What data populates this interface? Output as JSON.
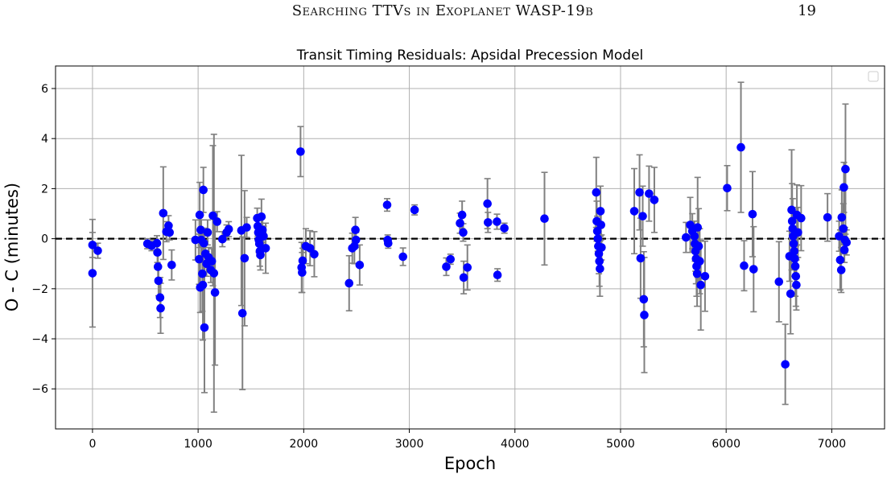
{
  "page": {
    "running_title": "Searching TTVs in Exoplanet WASP-19b",
    "page_number": "19"
  },
  "colors": {
    "points": "#0000ff",
    "errorbars": "#808080",
    "zero_line": "#000000",
    "grid": "#b0b0b0"
  },
  "chart_data": {
    "type": "scatter",
    "title": "Transit Timing Residuals: Apsidal Precession Model",
    "xlabel": "Epoch",
    "ylabel": "O - C (minutes)",
    "xlim": [
      -350,
      7500
    ],
    "ylim": [
      -7.6,
      6.9
    ],
    "xticks": [
      0,
      1000,
      2000,
      3000,
      4000,
      5000,
      6000,
      7000
    ],
    "yticks": [
      -6,
      -4,
      -2,
      0,
      2,
      4,
      6
    ],
    "ytick_labels": [
      "−6",
      "−4",
      "−2",
      "0",
      "2",
      "4",
      "6"
    ],
    "grid": true,
    "legend": "top-right (empty)",
    "reference_line": {
      "y": 0,
      "style": "dashed"
    },
    "series": [
      {
        "marker": "circle",
        "points": [
          {
            "x": 0,
            "y": -0.25,
            "err": 0.5
          },
          {
            "x": 0,
            "y": -1.38,
            "err": 2.15
          },
          {
            "x": 50,
            "y": -0.48,
            "err": 0.3
          },
          {
            "x": 520,
            "y": -0.2,
            "err": 0.2
          },
          {
            "x": 560,
            "y": -0.28,
            "err": 0.2
          },
          {
            "x": 610,
            "y": -0.18,
            "err": 0.3
          },
          {
            "x": 615,
            "y": -0.55,
            "err": 0.4
          },
          {
            "x": 620,
            "y": -1.12,
            "err": 0.5
          },
          {
            "x": 625,
            "y": -1.68,
            "err": 0.6
          },
          {
            "x": 640,
            "y": -2.35,
            "err": 0.8
          },
          {
            "x": 645,
            "y": -2.78,
            "err": 1.0
          },
          {
            "x": 670,
            "y": 1.02,
            "err": 1.85
          },
          {
            "x": 700,
            "y": 0.28,
            "err": 0.4
          },
          {
            "x": 720,
            "y": 0.52,
            "err": 0.4
          },
          {
            "x": 730,
            "y": 0.25,
            "err": 0.3
          },
          {
            "x": 750,
            "y": -1.05,
            "err": 0.6
          },
          {
            "x": 975,
            "y": -0.05,
            "err": 0.8
          },
          {
            "x": 1010,
            "y": -0.82,
            "err": 1.0
          },
          {
            "x": 1015,
            "y": 0.95,
            "err": 1.3
          },
          {
            "x": 1020,
            "y": -1.95,
            "err": 1.0
          },
          {
            "x": 1025,
            "y": 0.35,
            "err": 0.6
          },
          {
            "x": 1030,
            "y": -0.05,
            "err": 0.8
          },
          {
            "x": 1040,
            "y": -1.4,
            "err": 1.5
          },
          {
            "x": 1045,
            "y": -1.85,
            "err": 2.2
          },
          {
            "x": 1050,
            "y": 1.95,
            "err": 0.9
          },
          {
            "x": 1055,
            "y": -0.18,
            "err": 0.6
          },
          {
            "x": 1060,
            "y": -3.55,
            "err": 2.6
          },
          {
            "x": 1070,
            "y": -0.6,
            "err": 0.5
          },
          {
            "x": 1080,
            "y": -1.0,
            "err": 0.5
          },
          {
            "x": 1090,
            "y": 0.25,
            "err": 0.5
          },
          {
            "x": 1100,
            "y": -0.75,
            "err": 0.4
          },
          {
            "x": 1120,
            "y": -1.25,
            "err": 0.5
          },
          {
            "x": 1130,
            "y": -0.9,
            "err": 0.5
          },
          {
            "x": 1140,
            "y": 0.92,
            "err": 2.8
          },
          {
            "x": 1150,
            "y": -1.38,
            "err": 5.55
          },
          {
            "x": 1160,
            "y": -2.15,
            "err": 2.9
          },
          {
            "x": 1180,
            "y": 0.68,
            "err": 0.4
          },
          {
            "x": 1230,
            "y": -0.02,
            "err": 0.3
          },
          {
            "x": 1270,
            "y": 0.25,
            "err": 0.3
          },
          {
            "x": 1290,
            "y": 0.38,
            "err": 0.3
          },
          {
            "x": 1410,
            "y": 0.33,
            "err": 3.0
          },
          {
            "x": 1420,
            "y": -2.98,
            "err": 3.05
          },
          {
            "x": 1440,
            "y": -0.78,
            "err": 2.7
          },
          {
            "x": 1460,
            "y": 0.45,
            "err": 0.4
          },
          {
            "x": 1560,
            "y": 0.82,
            "err": 0.4
          },
          {
            "x": 1565,
            "y": 0.5,
            "err": 0.4
          },
          {
            "x": 1570,
            "y": 0.25,
            "err": 0.5
          },
          {
            "x": 1575,
            "y": -0.05,
            "err": 0.5
          },
          {
            "x": 1580,
            "y": -0.2,
            "err": 0.5
          },
          {
            "x": 1585,
            "y": -0.5,
            "err": 0.6
          },
          {
            "x": 1590,
            "y": -0.65,
            "err": 0.6
          },
          {
            "x": 1600,
            "y": 0.88,
            "err": 0.7
          },
          {
            "x": 1610,
            "y": 0.35,
            "err": 0.5
          },
          {
            "x": 1620,
            "y": 0.1,
            "err": 0.4
          },
          {
            "x": 1640,
            "y": -0.38,
            "err": 1.0
          },
          {
            "x": 1970,
            "y": 3.48,
            "err": 1.0
          },
          {
            "x": 1980,
            "y": -1.15,
            "err": 1.0
          },
          {
            "x": 1985,
            "y": -1.35,
            "err": 0.8
          },
          {
            "x": 1990,
            "y": -0.88,
            "err": 0.5
          },
          {
            "x": 2020,
            "y": -0.3,
            "err": 0.7
          },
          {
            "x": 2060,
            "y": -0.38,
            "err": 0.7
          },
          {
            "x": 2100,
            "y": -0.62,
            "err": 0.9
          },
          {
            "x": 2430,
            "y": -1.78,
            "err": 1.1
          },
          {
            "x": 2460,
            "y": -0.38,
            "err": 0.6
          },
          {
            "x": 2480,
            "y": -0.3,
            "err": 0.7
          },
          {
            "x": 2490,
            "y": 0.35,
            "err": 0.5
          },
          {
            "x": 2495,
            "y": -0.05,
            "err": 0.3
          },
          {
            "x": 2530,
            "y": -1.05,
            "err": 0.8
          },
          {
            "x": 2790,
            "y": 1.35,
            "err": 0.25
          },
          {
            "x": 2795,
            "y": -0.05,
            "err": 0.2
          },
          {
            "x": 2800,
            "y": -0.18,
            "err": 0.2
          },
          {
            "x": 2940,
            "y": -0.72,
            "err": 0.35
          },
          {
            "x": 3050,
            "y": 1.15,
            "err": 0.2
          },
          {
            "x": 3350,
            "y": -1.12,
            "err": 0.35
          },
          {
            "x": 3390,
            "y": -0.82,
            "err": 0.2
          },
          {
            "x": 3480,
            "y": 0.62,
            "err": 0.4
          },
          {
            "x": 3500,
            "y": 0.95,
            "err": 0.55
          },
          {
            "x": 3510,
            "y": 0.25,
            "err": 0.35
          },
          {
            "x": 3515,
            "y": -1.55,
            "err": 0.65
          },
          {
            "x": 3550,
            "y": -1.15,
            "err": 0.9
          },
          {
            "x": 3740,
            "y": 1.4,
            "err": 1.0
          },
          {
            "x": 3745,
            "y": 0.65,
            "err": 0.4
          },
          {
            "x": 3830,
            "y": 0.68,
            "err": 0.3
          },
          {
            "x": 3835,
            "y": -1.45,
            "err": 0.25
          },
          {
            "x": 3900,
            "y": 0.42,
            "err": 0.2
          },
          {
            "x": 4280,
            "y": 0.8,
            "err": 1.85
          },
          {
            "x": 4770,
            "y": 1.85,
            "err": 1.4
          },
          {
            "x": 4775,
            "y": 0.7,
            "err": 0.8
          },
          {
            "x": 4780,
            "y": 0.3,
            "err": 0.6
          },
          {
            "x": 4785,
            "y": 0.0,
            "err": 0.5
          },
          {
            "x": 4790,
            "y": -0.3,
            "err": 0.6
          },
          {
            "x": 4795,
            "y": -0.6,
            "err": 0.8
          },
          {
            "x": 4800,
            "y": -0.9,
            "err": 1.0
          },
          {
            "x": 4805,
            "y": -1.2,
            "err": 1.1
          },
          {
            "x": 4810,
            "y": 1.1,
            "err": 1.0
          },
          {
            "x": 4815,
            "y": 0.55,
            "err": 0.6
          },
          {
            "x": 4820,
            "y": -0.35,
            "err": 0.5
          },
          {
            "x": 5130,
            "y": 1.1,
            "err": 1.7
          },
          {
            "x": 5180,
            "y": 1.85,
            "err": 1.5
          },
          {
            "x": 5190,
            "y": -0.78,
            "err": 1.6
          },
          {
            "x": 5210,
            "y": 0.9,
            "err": 1.2
          },
          {
            "x": 5220,
            "y": -2.42,
            "err": 1.9
          },
          {
            "x": 5225,
            "y": -3.05,
            "err": 2.3
          },
          {
            "x": 5270,
            "y": 1.8,
            "err": 1.1
          },
          {
            "x": 5320,
            "y": 1.55,
            "err": 1.3
          },
          {
            "x": 5620,
            "y": 0.05,
            "err": 0.6
          },
          {
            "x": 5660,
            "y": 0.55,
            "err": 1.1
          },
          {
            "x": 5680,
            "y": 0.3,
            "err": 0.7
          },
          {
            "x": 5700,
            "y": 0.1,
            "err": 0.6
          },
          {
            "x": 5705,
            "y": -0.2,
            "err": 0.7
          },
          {
            "x": 5710,
            "y": -0.5,
            "err": 0.8
          },
          {
            "x": 5715,
            "y": -0.8,
            "err": 1.0
          },
          {
            "x": 5720,
            "y": -1.1,
            "err": 1.2
          },
          {
            "x": 5725,
            "y": -1.4,
            "err": 1.3
          },
          {
            "x": 5730,
            "y": 0.45,
            "err": 2.0
          },
          {
            "x": 5740,
            "y": -0.3,
            "err": 1.5
          },
          {
            "x": 5750,
            "y": -0.9,
            "err": 1.3
          },
          {
            "x": 5760,
            "y": -1.85,
            "err": 1.8
          },
          {
            "x": 5800,
            "y": -1.5,
            "err": 1.4
          },
          {
            "x": 6010,
            "y": 2.02,
            "err": 0.9
          },
          {
            "x": 6140,
            "y": 3.65,
            "err": 2.6
          },
          {
            "x": 6170,
            "y": -1.08,
            "err": 1.0
          },
          {
            "x": 6250,
            "y": 0.98,
            "err": 1.7
          },
          {
            "x": 6260,
            "y": -1.22,
            "err": 1.7
          },
          {
            "x": 6500,
            "y": -1.72,
            "err": 1.6
          },
          {
            "x": 6560,
            "y": -5.02,
            "err": 1.6
          },
          {
            "x": 6600,
            "y": -0.7,
            "err": 1.0
          },
          {
            "x": 6610,
            "y": -2.2,
            "err": 1.6
          },
          {
            "x": 6620,
            "y": 1.15,
            "err": 2.4
          },
          {
            "x": 6625,
            "y": 0.7,
            "err": 1.5
          },
          {
            "x": 6630,
            "y": 0.4,
            "err": 1.2
          },
          {
            "x": 6635,
            "y": 0.1,
            "err": 1.0
          },
          {
            "x": 6640,
            "y": -0.2,
            "err": 1.0
          },
          {
            "x": 6645,
            "y": -0.5,
            "err": 1.0
          },
          {
            "x": 6650,
            "y": -0.8,
            "err": 1.1
          },
          {
            "x": 6655,
            "y": -1.1,
            "err": 1.2
          },
          {
            "x": 6660,
            "y": -1.5,
            "err": 1.2
          },
          {
            "x": 6665,
            "y": -1.85,
            "err": 1.0
          },
          {
            "x": 6670,
            "y": 0.95,
            "err": 1.2
          },
          {
            "x": 6680,
            "y": 0.25,
            "err": 1.0
          },
          {
            "x": 6710,
            "y": 0.82,
            "err": 1.3
          },
          {
            "x": 6960,
            "y": 0.85,
            "err": 0.95
          },
          {
            "x": 7070,
            "y": 0.1,
            "err": 0.6
          },
          {
            "x": 7080,
            "y": -0.85,
            "err": 1.2
          },
          {
            "x": 7090,
            "y": -1.25,
            "err": 0.9
          },
          {
            "x": 7095,
            "y": 0.85,
            "err": 1.1
          },
          {
            "x": 7110,
            "y": 0.4,
            "err": 1.0
          },
          {
            "x": 7115,
            "y": 2.05,
            "err": 1.0
          },
          {
            "x": 7120,
            "y": -0.45,
            "err": 0.5
          },
          {
            "x": 7125,
            "y": -0.05,
            "err": 0.5
          },
          {
            "x": 7130,
            "y": 2.78,
            "err": 2.6
          },
          {
            "x": 7140,
            "y": -0.15,
            "err": 0.5
          }
        ]
      }
    ]
  }
}
